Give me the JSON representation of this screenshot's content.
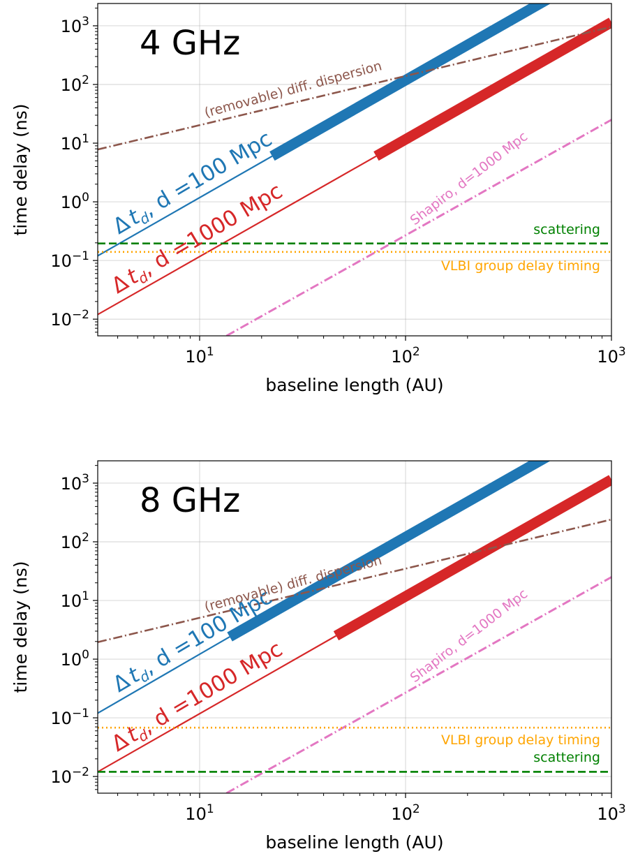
{
  "chart_data": [
    {
      "type": "line",
      "title": "4 GHz",
      "xlabel": "baseline length (AU)",
      "ylabel": "time delay (ns)",
      "xscale": "log",
      "yscale": "log",
      "xlim": [
        3.2,
        1000
      ],
      "ylim": [
        0.0052,
        2400
      ],
      "grid": true,
      "xticks": [
        10,
        100,
        1000
      ],
      "xtick_labels": [
        {
          "base": "10",
          "exp": "1"
        },
        {
          "base": "10",
          "exp": "2"
        },
        {
          "base": "10",
          "exp": "3"
        }
      ],
      "yticks": [
        0.01,
        0.1,
        1,
        10,
        100,
        1000
      ],
      "ytick_labels": [
        {
          "base": "10",
          "exp": "−2"
        },
        {
          "base": "10",
          "exp": "−1"
        },
        {
          "base": "10",
          "exp": "0"
        },
        {
          "base": "10",
          "exp": "1"
        },
        {
          "base": "10",
          "exp": "2"
        },
        {
          "base": "10",
          "exp": "3"
        }
      ],
      "series": [
        {
          "key": "td100",
          "label_prefix": "Δ",
          "label_main": "t",
          "label_sub": "d",
          "label_suffix": ", d =100 Mpc",
          "color": "#1f77b4",
          "style": "solid",
          "thin": {
            "x": [
              3.2,
              22.5
            ],
            "y": [
              0.12,
              6.0
            ]
          },
          "thick": {
            "x": [
              22.5,
              1000
            ],
            "y": [
              6.0,
              11800
            ]
          }
        },
        {
          "key": "td1000",
          "label_prefix": "Δ",
          "label_main": "t",
          "label_sub": "d",
          "label_suffix": ", d =1000 Mpc",
          "color": "#d62728",
          "style": "solid",
          "thin": {
            "x": [
              3.2,
              72
            ],
            "y": [
              0.012,
              6.0
            ]
          },
          "thick": {
            "x": [
              72,
              1000
            ],
            "y": [
              6.0,
              1150
            ]
          }
        },
        {
          "key": "dispersion",
          "label": "(removable) diff. dispersion",
          "color": "#8c564b",
          "style": "dashdot",
          "x": [
            3.2,
            1000
          ],
          "y": [
            7.8,
            960
          ]
        },
        {
          "key": "shapiro",
          "label": "Shapiro, d=1000 Mpc",
          "color": "#e377c2",
          "style": "dashdot",
          "x": [
            13.5,
            1000
          ],
          "y": [
            0.0052,
            25
          ]
        },
        {
          "key": "scattering",
          "label": "scattering",
          "color": "#008000",
          "style": "dashed",
          "x": [
            3.2,
            1000
          ],
          "y": [
            0.195,
            0.195
          ]
        },
        {
          "key": "vlbi",
          "label": "VLBI group delay timing",
          "color": "#ffa500",
          "style": "dotted",
          "x": [
            3.2,
            1000
          ],
          "y": [
            0.14,
            0.14
          ]
        }
      ]
    },
    {
      "type": "line",
      "title": "8 GHz",
      "xlabel": "baseline length (AU)",
      "ylabel": "time delay (ns)",
      "xscale": "log",
      "yscale": "log",
      "xlim": [
        3.2,
        1000
      ],
      "ylim": [
        0.0052,
        2400
      ],
      "grid": true,
      "xticks": [
        10,
        100,
        1000
      ],
      "xtick_labels": [
        {
          "base": "10",
          "exp": "1"
        },
        {
          "base": "10",
          "exp": "2"
        },
        {
          "base": "10",
          "exp": "3"
        }
      ],
      "yticks": [
        0.01,
        0.1,
        1,
        10,
        100,
        1000
      ],
      "ytick_labels": [
        {
          "base": "10",
          "exp": "−2"
        },
        {
          "base": "10",
          "exp": "−1"
        },
        {
          "base": "10",
          "exp": "0"
        },
        {
          "base": "10",
          "exp": "1"
        },
        {
          "base": "10",
          "exp": "2"
        },
        {
          "base": "10",
          "exp": "3"
        }
      ],
      "series": [
        {
          "key": "td100",
          "label_prefix": "Δ",
          "label_main": "t",
          "label_sub": "d",
          "label_suffix": ", d =100 Mpc",
          "color": "#1f77b4",
          "style": "solid",
          "thin": {
            "x": [
              3.2,
              14
            ],
            "y": [
              0.12,
              2.4
            ]
          },
          "thick": {
            "x": [
              14,
              1000
            ],
            "y": [
              2.4,
              11800
            ]
          }
        },
        {
          "key": "td1000",
          "label_prefix": "Δ",
          "label_main": "t",
          "label_sub": "d",
          "label_suffix": ", d =1000 Mpc",
          "color": "#d62728",
          "style": "solid",
          "thin": {
            "x": [
              3.2,
              46
            ],
            "y": [
              0.012,
              2.5
            ]
          },
          "thick": {
            "x": [
              46,
              1000
            ],
            "y": [
              2.5,
              1150
            ]
          }
        },
        {
          "key": "dispersion",
          "label": "(removable) diff. dispersion",
          "color": "#8c564b",
          "style": "dashdot",
          "x": [
            3.2,
            1000
          ],
          "y": [
            1.95,
            240
          ]
        },
        {
          "key": "shapiro",
          "label": "Shapiro, d=1000 Mpc",
          "color": "#e377c2",
          "style": "dashdot",
          "x": [
            13.5,
            1000
          ],
          "y": [
            0.0052,
            25
          ]
        },
        {
          "key": "vlbi",
          "label": "VLBI group delay timing",
          "color": "#ffa500",
          "style": "dotted",
          "x": [
            3.2,
            1000
          ],
          "y": [
            0.068,
            0.068
          ]
        },
        {
          "key": "scattering",
          "label": "scattering",
          "color": "#008000",
          "style": "dashed",
          "x": [
            3.2,
            1000
          ],
          "y": [
            0.012,
            0.012
          ]
        }
      ]
    }
  ]
}
